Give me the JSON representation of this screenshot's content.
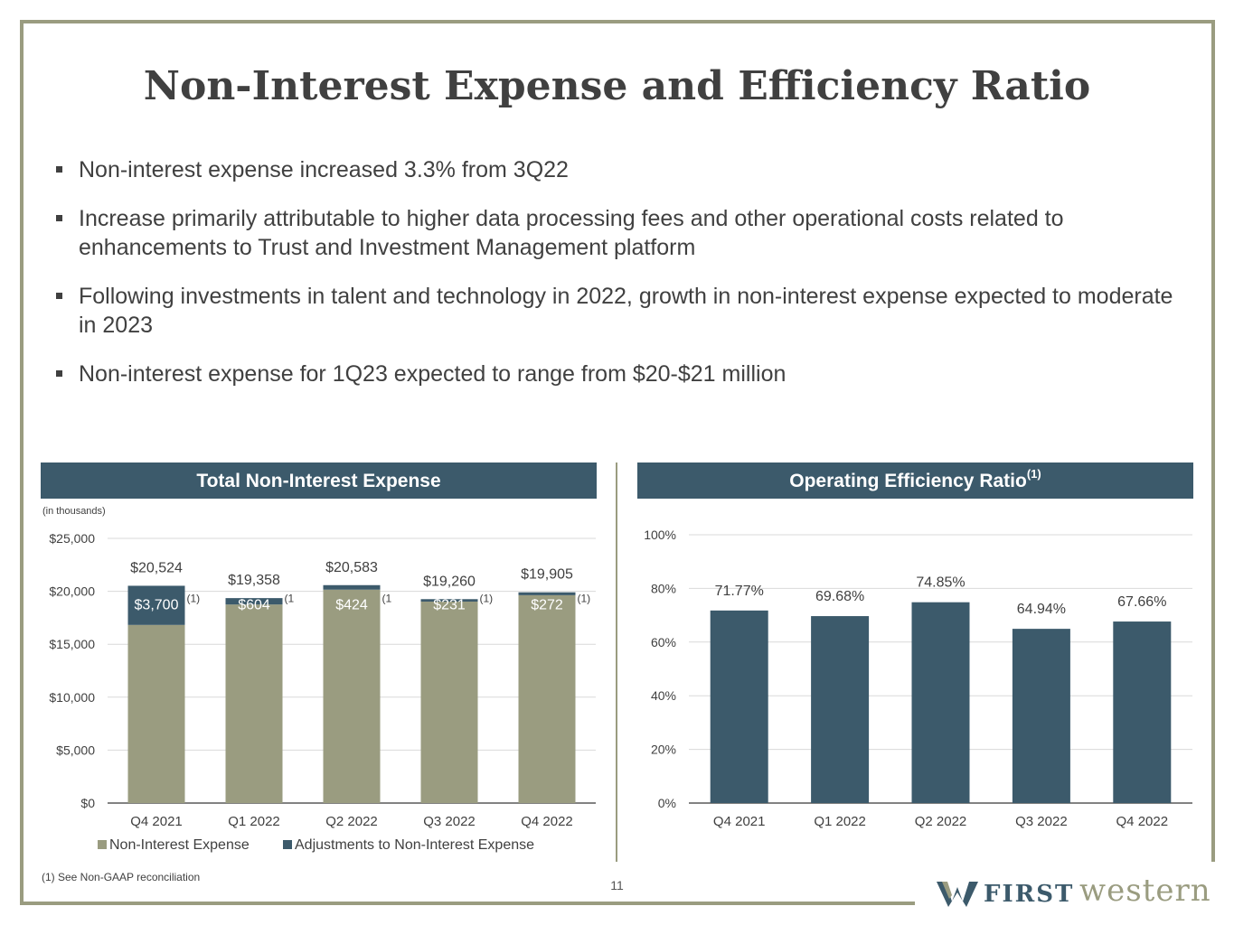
{
  "page": {
    "title": "Non-Interest Expense and Efficiency Ratio",
    "bullets": [
      "Non-interest expense increased 3.3% from 3Q22",
      "Increase primarily attributable to higher data processing fees and other operational costs related to enhancements to Trust and Investment Management platform",
      "Following investments in talent and technology in 2022, growth in non-interest expense expected to moderate in 2023",
      "Non-interest expense for 1Q23 expected to range from $20-$21 million"
    ],
    "footnote": "(1)  See Non-GAAP reconciliation",
    "page_number": "11",
    "logo": {
      "first": "FIRST",
      "western": "western"
    }
  },
  "panels": {
    "left": {
      "title": "Total Non-Interest Expense",
      "units": "(in thousands)"
    },
    "right": {
      "title": "Operating Efficiency Ratio",
      "title_sup": "(1)"
    }
  },
  "colors": {
    "olive": "#9a9c80",
    "slate": "#3c5a6b",
    "text": "#404040",
    "grid": "#d9d9d9",
    "axis": "#595959"
  },
  "chart_data": [
    {
      "type": "bar",
      "stacked": true,
      "title": "Total Non-Interest Expense",
      "units": "(in thousands)",
      "categories": [
        "Q4 2021",
        "Q1 2022",
        "Q2 2022",
        "Q3 2022",
        "Q4 2022"
      ],
      "series": [
        {
          "name": "Non-Interest Expense",
          "values": [
            16824,
            18754,
            20159,
            19029,
            19633
          ]
        },
        {
          "name": "Adjustments to Non-Interest Expense",
          "values": [
            3700,
            604,
            424,
            231,
            272
          ]
        }
      ],
      "totals": [
        20524,
        19358,
        20583,
        19260,
        19905
      ],
      "total_labels": [
        "$20,524",
        "$19,358",
        "$20,583",
        "$19,260",
        "$19,905"
      ],
      "adjustment_labels": [
        "$3,700",
        "$604",
        "$424",
        "$231",
        "$272"
      ],
      "footnote_marks": [
        "(1)",
        "(1",
        "(1",
        "(1)",
        "(1)"
      ],
      "yticks": [
        "$0",
        "$5,000",
        "$10,000",
        "$15,000",
        "$20,000",
        "$25,000"
      ],
      "ylim": [
        0,
        25000
      ],
      "legend": [
        "Non-Interest Expense",
        "Adjustments to Non-Interest Expense"
      ],
      "legend_position": "bottom"
    },
    {
      "type": "bar",
      "title": "Operating Efficiency Ratio",
      "categories": [
        "Q4 2021",
        "Q1 2022",
        "Q2 2022",
        "Q3 2022",
        "Q4 2022"
      ],
      "values": [
        71.77,
        69.68,
        74.85,
        64.94,
        67.66
      ],
      "value_labels": [
        "71.77%",
        "69.68%",
        "74.85%",
        "64.94%",
        "67.66%"
      ],
      "yticks": [
        "0%",
        "20%",
        "40%",
        "60%",
        "80%",
        "100%"
      ],
      "ylim": [
        0,
        100
      ]
    }
  ]
}
